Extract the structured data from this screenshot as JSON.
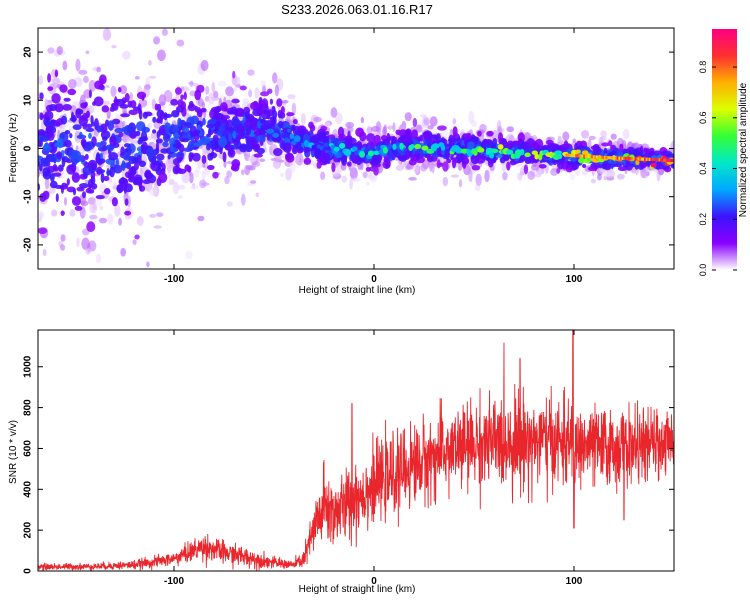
{
  "title": "S233.2026.063.01.16.R17",
  "chart_data": [
    {
      "type": "heatmap",
      "title": "S233.2026.063.01.16.R17",
      "xlabel": "Height of straight line (km)",
      "ylabel": "Frequency (Hz)",
      "xlim": [
        -168,
        150
      ],
      "ylim": [
        -25,
        25
      ],
      "xticks": [
        -100,
        0,
        100
      ],
      "yticks": [
        -20,
        -10,
        0,
        10,
        20
      ],
      "grid": false,
      "colorbar": {
        "label": "Normalized spectral amplitude",
        "range": [
          0.0,
          0.95
        ],
        "ticks": [
          "0.0",
          "0.2",
          "0.4",
          "0.6",
          "0.8"
        ],
        "tick_values": [
          0.0,
          0.2,
          0.4,
          0.6,
          0.8
        ],
        "colormap": "rainbow",
        "colors": [
          "#ffffff",
          "#8a00ff",
          "#3c14ff",
          "#00a8ff",
          "#00e8c8",
          "#34ff34",
          "#dcff00",
          "#ffb000",
          "#ff3030",
          "#ff0080"
        ]
      },
      "ridge": {
        "x": [
          -168,
          -140,
          -120,
          -100,
          -80,
          -60,
          -45,
          -35,
          -20,
          -10,
          0,
          10,
          20,
          40,
          60,
          80,
          100,
          120,
          140,
          150
        ],
        "freq": [
          0,
          0,
          0,
          2,
          3,
          4,
          3,
          1,
          0,
          -0.5,
          -1,
          0,
          0.5,
          0,
          -0.5,
          -1,
          -1.5,
          -2,
          -2.3,
          -2.5
        ],
        "spread_hz": [
          12,
          12,
          11,
          8,
          7,
          6,
          5,
          3,
          3,
          3,
          2.5,
          2.5,
          2.5,
          2.5,
          2.5,
          2,
          2,
          2,
          1.5,
          1.5
        ],
        "peak_amplitude": [
          0.1,
          0.1,
          0.12,
          0.15,
          0.2,
          0.25,
          0.3,
          0.35,
          0.4,
          0.45,
          0.45,
          0.5,
          0.55,
          0.55,
          0.6,
          0.65,
          0.8,
          0.85,
          0.9,
          0.92
        ]
      }
    },
    {
      "type": "line",
      "xlabel": "Height of straight line (km)",
      "ylabel": "SNR (10 * v/v)",
      "xlim": [
        -168,
        150
      ],
      "ylim": [
        0,
        1180
      ],
      "xticks": [
        -100,
        0,
        100
      ],
      "yticks": [
        0,
        200,
        400,
        600,
        800,
        1000
      ],
      "grid": false,
      "color": "#e8262c",
      "envelope": {
        "x": [
          -168,
          -140,
          -120,
          -100,
          -90,
          -85,
          -75,
          -60,
          -50,
          -40,
          -35,
          -30,
          -25,
          -20,
          -10,
          0,
          10,
          20,
          30,
          40,
          50,
          60,
          70,
          80,
          90,
          99,
          100,
          101,
          110,
          120,
          130,
          140,
          150
        ],
        "mean": [
          20,
          22,
          30,
          60,
          100,
          120,
          90,
          60,
          40,
          30,
          60,
          200,
          320,
          280,
          350,
          420,
          470,
          520,
          560,
          600,
          620,
          630,
          640,
          640,
          630,
          620,
          400,
          620,
          610,
          600,
          610,
          620,
          630
        ],
        "amplitude": [
          15,
          15,
          20,
          30,
          50,
          60,
          50,
          40,
          25,
          20,
          40,
          120,
          180,
          150,
          160,
          160,
          170,
          180,
          180,
          180,
          190,
          200,
          210,
          200,
          190,
          180,
          100,
          180,
          170,
          170,
          160,
          150,
          140
        ]
      },
      "spikes": [
        {
          "x": -11,
          "y": 820
        },
        {
          "x": 73,
          "y": 1040
        },
        {
          "x": 99.5,
          "y": 1180
        },
        {
          "x": 100,
          "y": 210
        },
        {
          "x": 125,
          "y": 250
        }
      ]
    }
  ]
}
